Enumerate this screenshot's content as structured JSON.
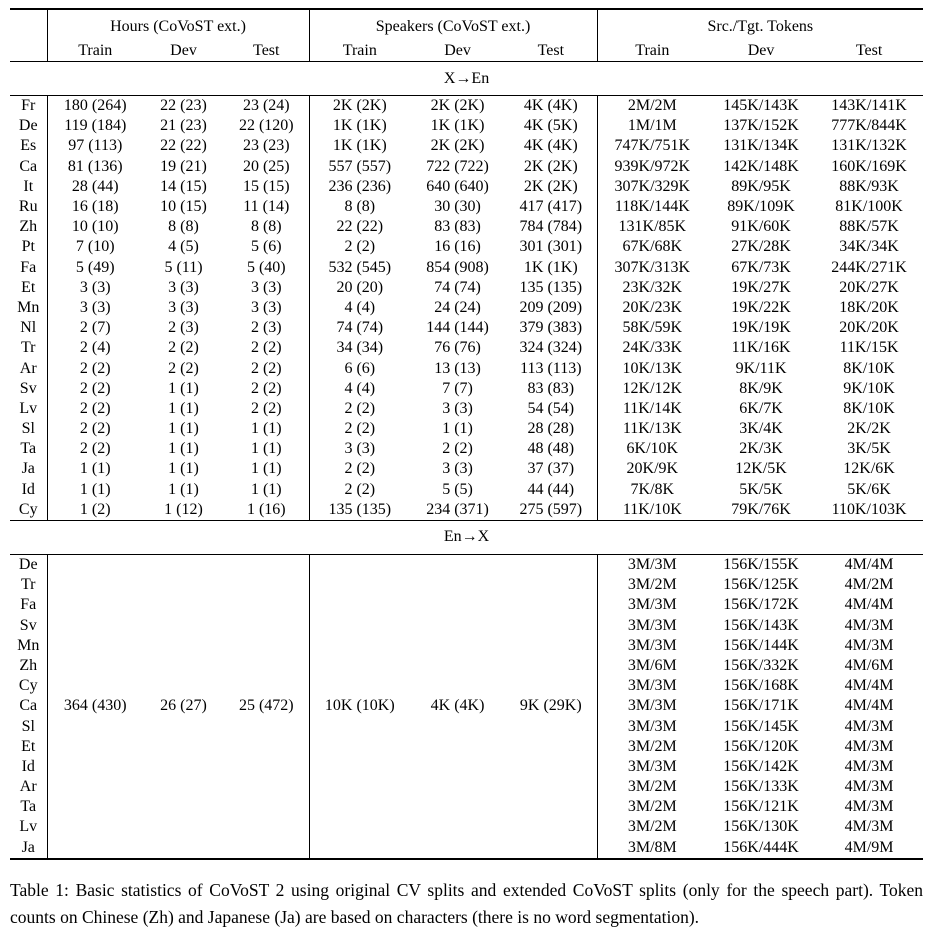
{
  "table": {
    "groups": [
      {
        "label": "Hours (CoVoST ext.)"
      },
      {
        "label": "Speakers (CoVoST ext.)"
      },
      {
        "label": "Src./Tgt. Tokens"
      }
    ],
    "sub_headers": [
      "Train",
      "Dev",
      "Test"
    ],
    "sections": [
      {
        "label": "X→En",
        "rows": [
          [
            "Fr",
            "180 (264)",
            "22 (23)",
            "23 (24)",
            "2K (2K)",
            "2K (2K)",
            "4K (4K)",
            "2M/2M",
            "145K/143K",
            "143K/141K"
          ],
          [
            "De",
            "119 (184)",
            "21 (23)",
            "22 (120)",
            "1K (1K)",
            "1K (1K)",
            "4K (5K)",
            "1M/1M",
            "137K/152K",
            "777K/844K"
          ],
          [
            "Es",
            "97 (113)",
            "22 (22)",
            "23 (23)",
            "1K (1K)",
            "2K (2K)",
            "4K (4K)",
            "747K/751K",
            "131K/134K",
            "131K/132K"
          ],
          [
            "Ca",
            "81 (136)",
            "19 (21)",
            "20 (25)",
            "557 (557)",
            "722 (722)",
            "2K (2K)",
            "939K/972K",
            "142K/148K",
            "160K/169K"
          ],
          [
            "It",
            "28 (44)",
            "14 (15)",
            "15 (15)",
            "236 (236)",
            "640 (640)",
            "2K (2K)",
            "307K/329K",
            "89K/95K",
            "88K/93K"
          ],
          [
            "Ru",
            "16 (18)",
            "10 (15)",
            "11 (14)",
            "8 (8)",
            "30 (30)",
            "417 (417)",
            "118K/144K",
            "89K/109K",
            "81K/100K"
          ],
          [
            "Zh",
            "10 (10)",
            "8 (8)",
            "8 (8)",
            "22 (22)",
            "83 (83)",
            "784 (784)",
            "131K/85K",
            "91K/60K",
            "88K/57K"
          ],
          [
            "Pt",
            "7 (10)",
            "4 (5)",
            "5 (6)",
            "2 (2)",
            "16 (16)",
            "301 (301)",
            "67K/68K",
            "27K/28K",
            "34K/34K"
          ],
          [
            "Fa",
            "5 (49)",
            "5 (11)",
            "5 (40)",
            "532 (545)",
            "854 (908)",
            "1K (1K)",
            "307K/313K",
            "67K/73K",
            "244K/271K"
          ],
          [
            "Et",
            "3 (3)",
            "3 (3)",
            "3 (3)",
            "20 (20)",
            "74 (74)",
            "135 (135)",
            "23K/32K",
            "19K/27K",
            "20K/27K"
          ],
          [
            "Mn",
            "3 (3)",
            "3 (3)",
            "3 (3)",
            "4 (4)",
            "24 (24)",
            "209 (209)",
            "20K/23K",
            "19K/22K",
            "18K/20K"
          ],
          [
            "Nl",
            "2 (7)",
            "2 (3)",
            "2 (3)",
            "74 (74)",
            "144 (144)",
            "379 (383)",
            "58K/59K",
            "19K/19K",
            "20K/20K"
          ],
          [
            "Tr",
            "2 (4)",
            "2 (2)",
            "2 (2)",
            "34 (34)",
            "76 (76)",
            "324 (324)",
            "24K/33K",
            "11K/16K",
            "11K/15K"
          ],
          [
            "Ar",
            "2 (2)",
            "2 (2)",
            "2 (2)",
            "6 (6)",
            "13 (13)",
            "113 (113)",
            "10K/13K",
            "9K/11K",
            "8K/10K"
          ],
          [
            "Sv",
            "2 (2)",
            "1 (1)",
            "2 (2)",
            "4 (4)",
            "7 (7)",
            "83 (83)",
            "12K/12K",
            "8K/9K",
            "9K/10K"
          ],
          [
            "Lv",
            "2 (2)",
            "1 (1)",
            "2 (2)",
            "2 (2)",
            "3 (3)",
            "54 (54)",
            "11K/14K",
            "6K/7K",
            "8K/10K"
          ],
          [
            "Sl",
            "2 (2)",
            "1 (1)",
            "1 (1)",
            "2 (2)",
            "1 (1)",
            "28 (28)",
            "11K/13K",
            "3K/4K",
            "2K/2K"
          ],
          [
            "Ta",
            "2 (2)",
            "1 (1)",
            "1 (1)",
            "3 (3)",
            "2 (2)",
            "48 (48)",
            "6K/10K",
            "2K/3K",
            "3K/5K"
          ],
          [
            "Ja",
            "1 (1)",
            "1 (1)",
            "1 (1)",
            "2 (2)",
            "3 (3)",
            "37 (37)",
            "20K/9K",
            "12K/5K",
            "12K/6K"
          ],
          [
            "Id",
            "1 (1)",
            "1 (1)",
            "1 (1)",
            "2 (2)",
            "5 (5)",
            "44 (44)",
            "7K/8K",
            "5K/5K",
            "5K/6K"
          ],
          [
            "Cy",
            "1 (2)",
            "1 (12)",
            "1 (16)",
            "135 (135)",
            "234 (371)",
            "275 (597)",
            "11K/10K",
            "79K/76K",
            "110K/103K"
          ]
        ]
      },
      {
        "label": "En→X",
        "rows": [
          [
            "De",
            "",
            "",
            "",
            "",
            "",
            "",
            "3M/3M",
            "156K/155K",
            "4M/4M"
          ],
          [
            "Tr",
            "",
            "",
            "",
            "",
            "",
            "",
            "3M/2M",
            "156K/125K",
            "4M/2M"
          ],
          [
            "Fa",
            "",
            "",
            "",
            "",
            "",
            "",
            "3M/3M",
            "156K/172K",
            "4M/4M"
          ],
          [
            "Sv",
            "",
            "",
            "",
            "",
            "",
            "",
            "3M/3M",
            "156K/143K",
            "4M/3M"
          ],
          [
            "Mn",
            "",
            "",
            "",
            "",
            "",
            "",
            "3M/3M",
            "156K/144K",
            "4M/3M"
          ],
          [
            "Zh",
            "",
            "",
            "",
            "",
            "",
            "",
            "3M/6M",
            "156K/332K",
            "4M/6M"
          ],
          [
            "Cy",
            "",
            "",
            "",
            "",
            "",
            "",
            "3M/3M",
            "156K/168K",
            "4M/4M"
          ],
          [
            "Ca",
            "364 (430)",
            "26 (27)",
            "25 (472)",
            "10K (10K)",
            "4K (4K)",
            "9K (29K)",
            "3M/3M",
            "156K/171K",
            "4M/4M"
          ],
          [
            "Sl",
            "",
            "",
            "",
            "",
            "",
            "",
            "3M/3M",
            "156K/145K",
            "4M/3M"
          ],
          [
            "Et",
            "",
            "",
            "",
            "",
            "",
            "",
            "3M/2M",
            "156K/120K",
            "4M/3M"
          ],
          [
            "Id",
            "",
            "",
            "",
            "",
            "",
            "",
            "3M/3M",
            "156K/142K",
            "4M/3M"
          ],
          [
            "Ar",
            "",
            "",
            "",
            "",
            "",
            "",
            "3M/2M",
            "156K/133K",
            "4M/3M"
          ],
          [
            "Ta",
            "",
            "",
            "",
            "",
            "",
            "",
            "3M/2M",
            "156K/121K",
            "4M/3M"
          ],
          [
            "Lv",
            "",
            "",
            "",
            "",
            "",
            "",
            "3M/2M",
            "156K/130K",
            "4M/3M"
          ],
          [
            "Ja",
            "",
            "",
            "",
            "",
            "",
            "",
            "3M/8M",
            "156K/444K",
            "4M/9M"
          ]
        ]
      }
    ]
  },
  "caption": "Table 1: Basic statistics of CoVoST 2 using original CV splits and extended CoVoST splits (only for the speech part). Token counts on Chinese (Zh) and Japanese (Ja) are based on characters (there is no word segmentation)."
}
